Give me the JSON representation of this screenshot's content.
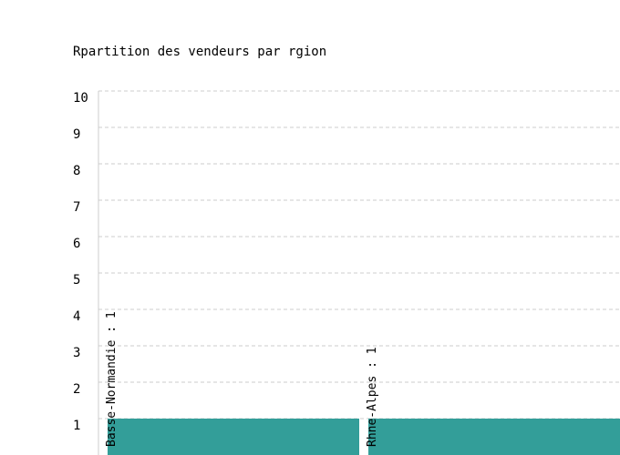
{
  "chart_data": {
    "type": "bar",
    "title": "Rpartition des vendeurs par rgion",
    "xlabel": "",
    "ylabel": "",
    "categories": [
      "Basse-Normandie",
      "Rhne-Alpes"
    ],
    "values": [
      1,
      1
    ],
    "data_labels": [
      "Basse-Normandie : 1",
      "Rhne-Alpes : 1"
    ],
    "ylim": [
      0,
      10
    ],
    "yticks": [
      "1",
      "2",
      "3",
      "4",
      "5",
      "6",
      "7",
      "8",
      "9",
      "10"
    ],
    "grid": true,
    "legend": "none",
    "colors": {
      "bar": "#339e99",
      "grid": "#cccccc",
      "axis": "#cccccc"
    }
  }
}
